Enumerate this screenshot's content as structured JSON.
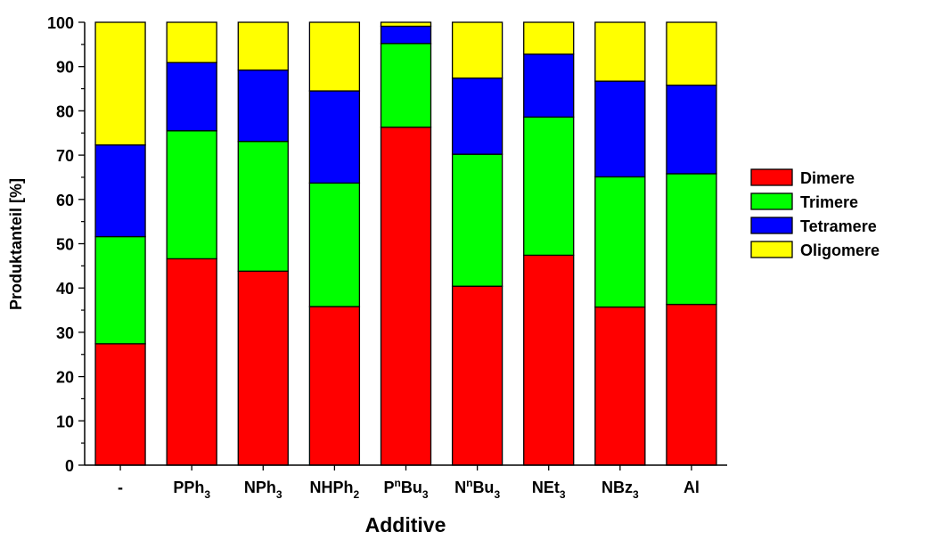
{
  "chart_data": {
    "type": "bar",
    "stacked": true,
    "title": "",
    "xlabel": "Additive",
    "ylabel": "Produktanteil [%]",
    "ylim": [
      0,
      100
    ],
    "yticks": [
      "0",
      "10",
      "20",
      "30",
      "40",
      "50",
      "60",
      "70",
      "80",
      "90",
      "100"
    ],
    "grid": false,
    "legend_position": "right",
    "categories": [
      {
        "base": "-",
        "sup": "",
        "sub": ""
      },
      {
        "base": "PPh",
        "sup": "",
        "sub": "3"
      },
      {
        "base": "NPh",
        "sup": "",
        "sub": "3"
      },
      {
        "base": "NHPh",
        "sup": "",
        "sub": "2"
      },
      {
        "base": "P",
        "sup": "n",
        "rest": "Bu",
        "sub": "3"
      },
      {
        "base": "N",
        "sup": "n",
        "rest": "Bu",
        "sub": "3"
      },
      {
        "base": "NEt",
        "sup": "",
        "sub": "3"
      },
      {
        "base": "NBz",
        "sup": "",
        "sub": "3"
      },
      {
        "base": "Al",
        "sup": "",
        "sub": ""
      }
    ],
    "series": [
      {
        "name": "Dimere",
        "color": "#ff0000",
        "values": [
          27.4,
          46.6,
          43.8,
          35.8,
          76.3,
          40.4,
          47.4,
          35.7,
          36.3
        ]
      },
      {
        "name": "Trimere",
        "color": "#00ff00",
        "values": [
          24.2,
          28.9,
          29.3,
          27.9,
          18.9,
          29.8,
          31.2,
          29.4,
          29.5
        ]
      },
      {
        "name": "Tetramere",
        "color": "#0000ff",
        "values": [
          20.7,
          15.4,
          16.1,
          20.8,
          3.9,
          17.2,
          14.2,
          21.6,
          20.0
        ]
      },
      {
        "name": "Oligomere",
        "color": "#ffff00",
        "values": [
          27.7,
          9.1,
          10.8,
          15.5,
          0.9,
          12.6,
          7.2,
          13.3,
          14.2
        ]
      }
    ]
  }
}
